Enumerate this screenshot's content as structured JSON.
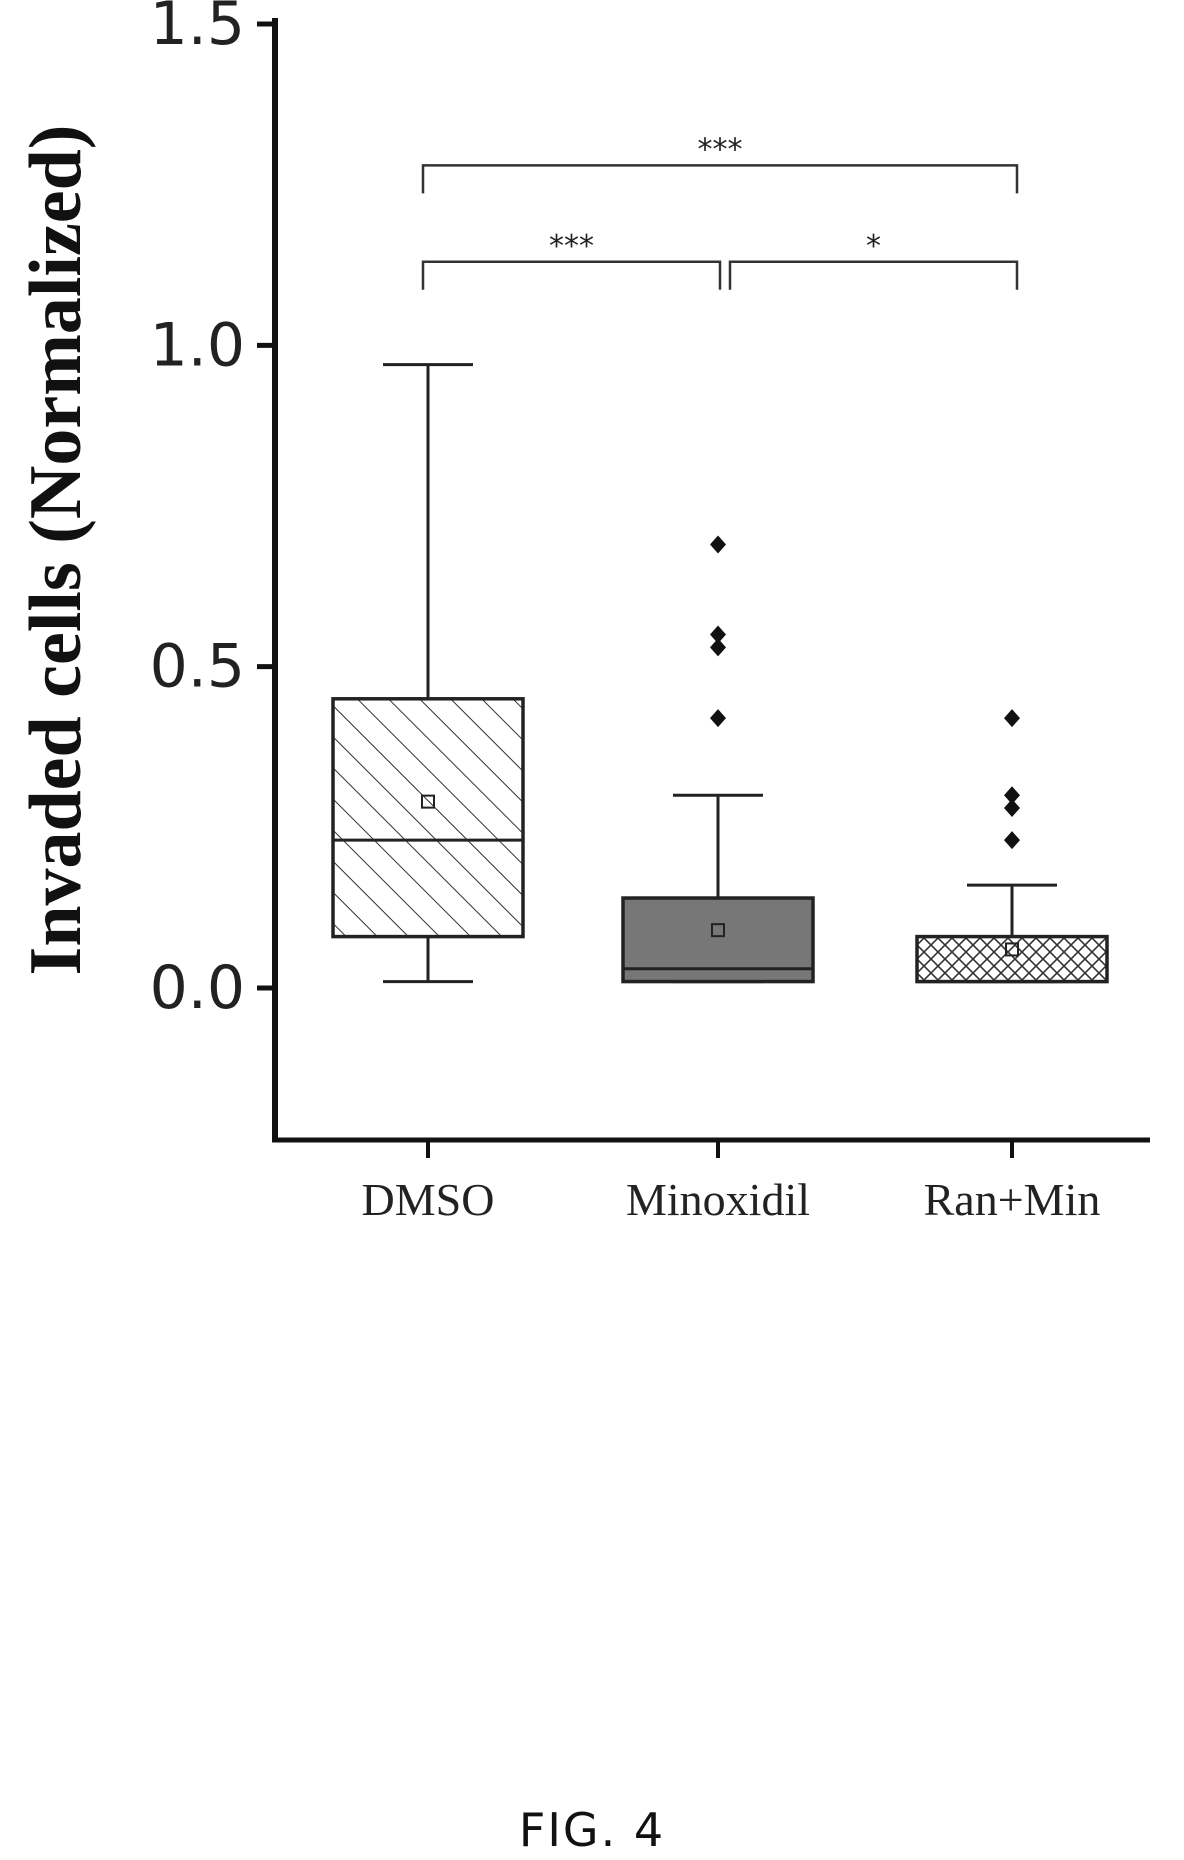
{
  "chart_data": {
    "type": "box",
    "ylabel": "Invaded cells (Normalized)",
    "xlabel": "",
    "ylim": [
      -0.24,
      1.5
    ],
    "yticks": [
      0.0,
      0.5,
      1.0,
      1.5
    ],
    "ytick_labels": [
      "0.0",
      "0.5",
      "1.0",
      "1.5"
    ],
    "categories": [
      "DMSO",
      "Minoxidil",
      "Ran+Min"
    ],
    "boxes": [
      {
        "label": "DMSO",
        "whisker_low": 0.01,
        "q1": 0.08,
        "median": 0.23,
        "q3": 0.45,
        "whisker_high": 0.97,
        "mean": 0.29,
        "outliers": [],
        "fill": "diagonal-hatch"
      },
      {
        "label": "Minoxidil",
        "whisker_low": 0.01,
        "q1": 0.01,
        "median": 0.03,
        "q3": 0.14,
        "whisker_high": 0.3,
        "mean": 0.09,
        "outliers": [
          0.69,
          0.55,
          0.53,
          0.42
        ],
        "fill": "solid-gray"
      },
      {
        "label": "Ran+Min",
        "whisker_low": 0.01,
        "q1": 0.01,
        "median": 0.01,
        "q3": 0.08,
        "whisker_high": 0.16,
        "mean": 0.06,
        "outliers": [
          0.42,
          0.3,
          0.28,
          0.23
        ],
        "fill": "cross-hatch"
      }
    ],
    "significance": [
      {
        "from": "DMSO",
        "to": "Ran+Min",
        "label": "***",
        "y": 1.28
      },
      {
        "from": "DMSO",
        "to": "Minoxidil",
        "label": "***",
        "y": 1.13
      },
      {
        "from": "Minoxidil",
        "to": "Ran+Min",
        "label": "*",
        "y": 1.13
      }
    ],
    "grid": false,
    "legend": "none"
  },
  "caption": "FIG. 4",
  "colors": {
    "axis": "#111111",
    "solid_fill": "#777777",
    "line": "#222222"
  }
}
